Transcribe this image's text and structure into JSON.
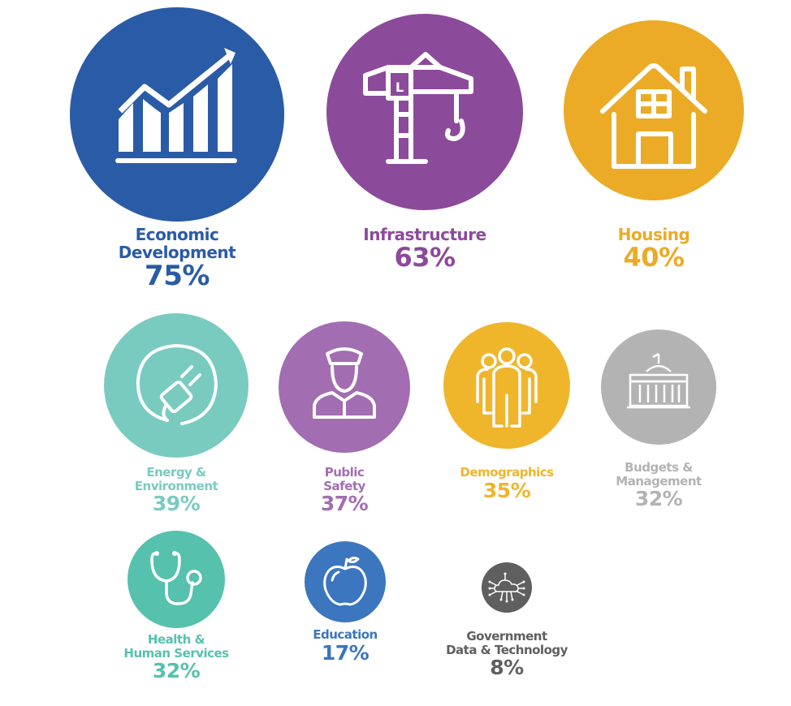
{
  "colors": {
    "economic": "#2a5ba6",
    "infrastructure": "#8c4a9b",
    "housing": "#ebab26",
    "energy": "#79cbc0",
    "public_safety": "#a26db1",
    "demographics": "#efb52b",
    "budgets": "#b3b3b3",
    "health": "#56c1ad",
    "education": "#3b76be",
    "government": "#5f5f5f"
  },
  "items": {
    "economic": {
      "name_line1": "Economic",
      "name_line2": "Development",
      "percent": "75%",
      "value": 75,
      "icon": "growth-chart-icon"
    },
    "infrastructure": {
      "name_line1": "Infrastructure",
      "percent": "63%",
      "value": 63,
      "icon": "crane-icon"
    },
    "housing": {
      "name_line1": "Housing",
      "percent": "40%",
      "value": 40,
      "icon": "house-icon"
    },
    "energy": {
      "name_line1": "Energy &",
      "name_line2": "Environment",
      "percent": "39%",
      "value": 39,
      "icon": "plug-icon"
    },
    "public_safety": {
      "name_line1": "Public",
      "name_line2": "Safety",
      "percent": "37%",
      "value": 37,
      "icon": "police-officer-icon"
    },
    "demographics": {
      "name_line1": "Demographics",
      "percent": "35%",
      "value": 35,
      "icon": "people-group-icon"
    },
    "budgets": {
      "name_line1": "Budgets &",
      "name_line2": "Management",
      "percent": "32%",
      "value": 32,
      "icon": "capitol-building-icon"
    },
    "health": {
      "name_line1": "Health &",
      "name_line2": "Human Services",
      "percent": "32%",
      "value": 32,
      "icon": "stethoscope-icon"
    },
    "education": {
      "name_line1": "Education",
      "percent": "17%",
      "value": 17,
      "icon": "apple-icon"
    },
    "government": {
      "name_line1": "Government",
      "name_line2": "Data & Technology",
      "percent": "8%",
      "value": 8,
      "icon": "cloud-network-icon"
    }
  }
}
